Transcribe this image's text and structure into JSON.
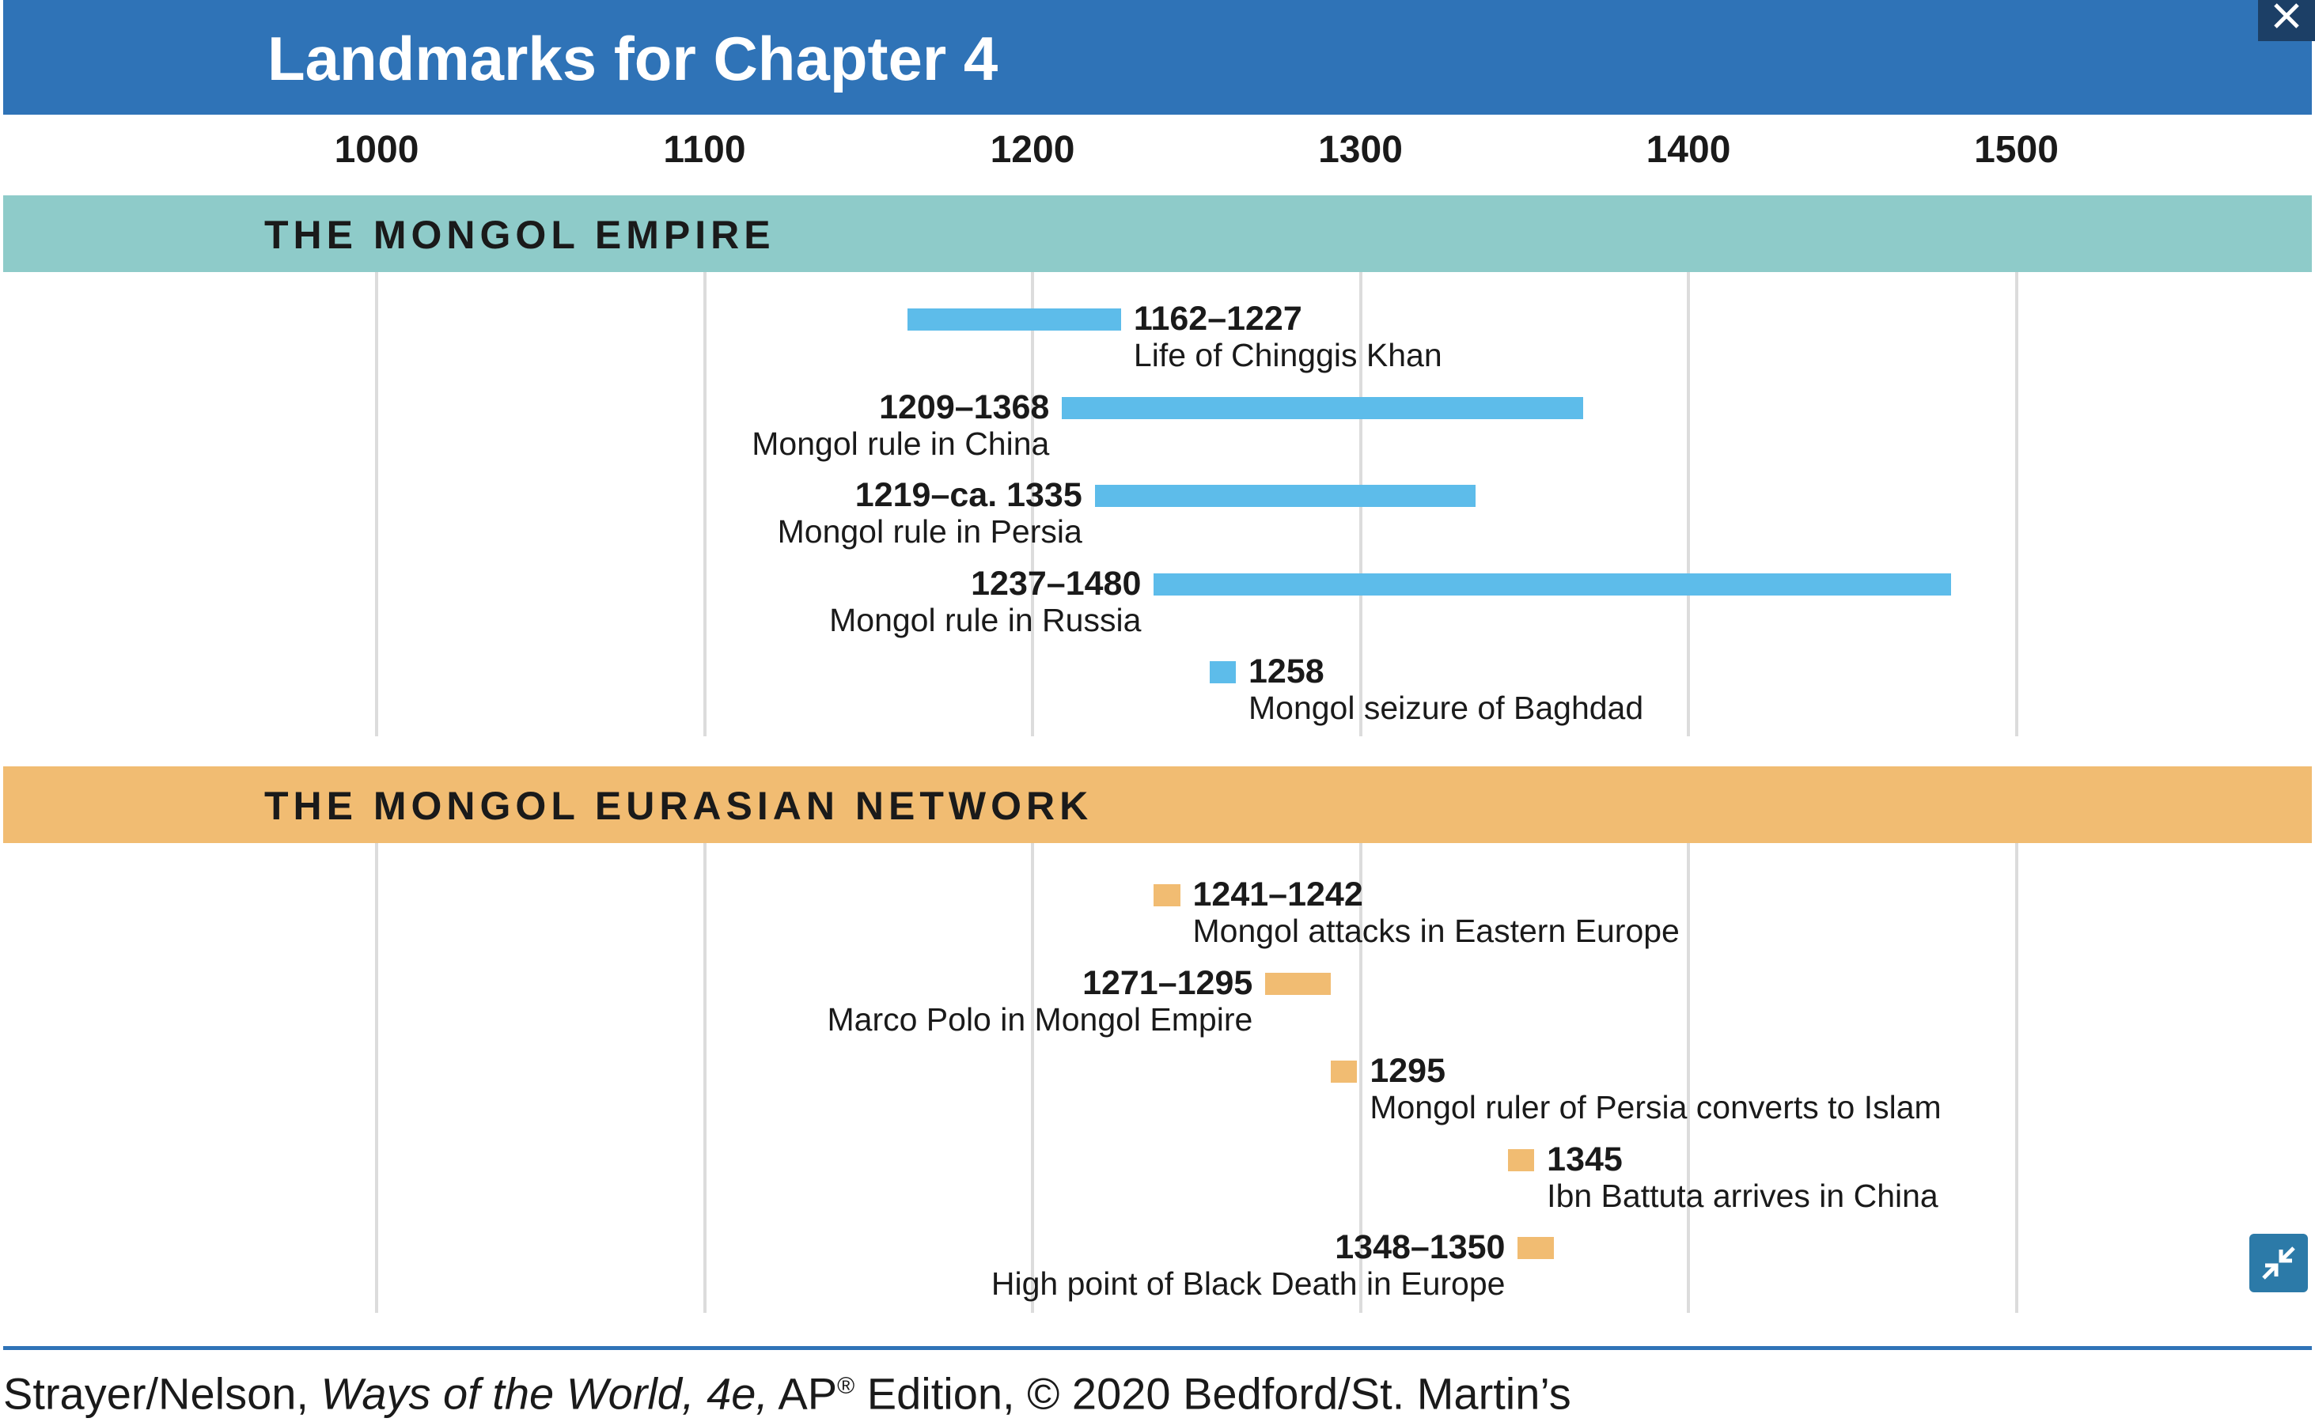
{
  "header": {
    "title": "Landmarks for Chapter 4"
  },
  "colors": {
    "header_bg": "#2f73b7",
    "empire_band": "#8ecbc9",
    "network_band": "#f1bc72",
    "empire_bar": "#5dbcea",
    "network_bar": "#f1bc72"
  },
  "chart_data": {
    "type": "timeline",
    "axis": {
      "range": [
        1000,
        1500
      ],
      "ticks": [
        "1000",
        "1100",
        "1200",
        "1300",
        "1400",
        "1500"
      ]
    },
    "sections": [
      {
        "title": "THE MONGOL EMPIRE",
        "events": [
          {
            "start": 1162,
            "end": 1227,
            "date": "1162–1227",
            "label": "Life of Chinggis Khan",
            "label_side": "right"
          },
          {
            "start": 1209,
            "end": 1368,
            "date": "1209–1368",
            "label": "Mongol rule in China",
            "label_side": "left"
          },
          {
            "start": 1219,
            "end": 1335,
            "date": "1219–ca. 1335",
            "label": "Mongol rule in Persia",
            "label_side": "left"
          },
          {
            "start": 1237,
            "end": 1480,
            "date": "1237–1480",
            "label": "Mongol rule in Russia",
            "label_side": "left"
          },
          {
            "start": 1254,
            "end": 1262,
            "date": "1258",
            "label": "Mongol seizure of Baghdad",
            "label_side": "right"
          }
        ]
      },
      {
        "title": "THE MONGOL EURASIAN NETWORK",
        "events": [
          {
            "start": 1237,
            "end": 1245,
            "date": "1241–1242",
            "label": "Mongol attacks in Eastern Europe",
            "label_side": "right"
          },
          {
            "start": 1271,
            "end": 1291,
            "date": "1271–1295",
            "label": "Marco Polo in Mongol Empire",
            "label_side": "left"
          },
          {
            "start": 1291,
            "end": 1299,
            "date": "1295",
            "label": "Mongol ruler of Persia converts to Islam",
            "label_side": "right"
          },
          {
            "start": 1345,
            "end": 1353,
            "date": "1345",
            "label": "Ibn Battuta arrives in China",
            "label_side": "right"
          },
          {
            "start": 1348,
            "end": 1359,
            "date": "1348–1350",
            "label": "High point of Black Death in Europe",
            "label_side": "left"
          }
        ]
      }
    ]
  },
  "footer": {
    "authors": "Strayer/Nelson, ",
    "book_title": "Ways of the World, 4e,",
    "ap": " AP",
    "registered": "®",
    "rest": " Edition, © 2020 Bedford/St. Martin’s"
  }
}
